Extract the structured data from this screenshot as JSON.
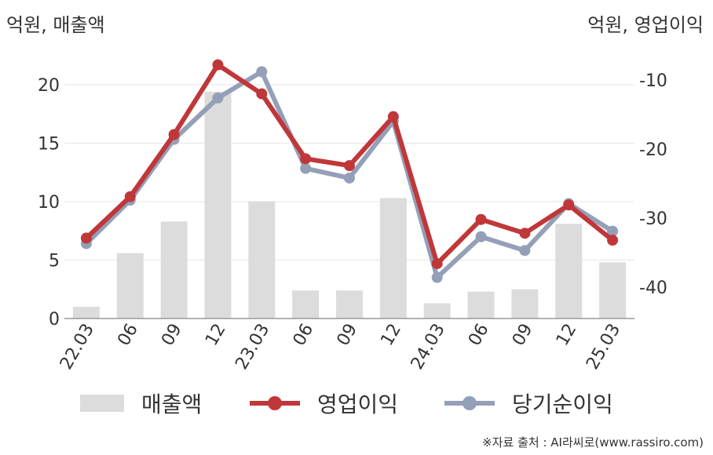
{
  "header": {
    "left_unit": "억원, 매출액",
    "right_unit": "억원, 영업이익"
  },
  "chart_data": {
    "type": "bar",
    "categories": [
      "22.03",
      "06",
      "09",
      "12",
      "23.03",
      "06",
      "09",
      "12",
      "24.03",
      "06",
      "09",
      "12",
      "25.03"
    ],
    "y_left": {
      "label": "억원, 매출액",
      "ylim": [
        0,
        20
      ],
      "ticks": [
        0,
        5,
        10,
        15,
        20
      ]
    },
    "y_right": {
      "label": "억원, 영업이익",
      "ylim": [
        -45,
        -8
      ],
      "ticks": [
        -40,
        -30,
        -20,
        -10
      ]
    },
    "grid": true,
    "legend_position": "bottom",
    "series": [
      {
        "name": "매출액",
        "type": "bar",
        "axis": "left",
        "color": "#dcdcdc",
        "values": [
          1.0,
          5.6,
          8.3,
          19.4,
          10.0,
          2.4,
          2.4,
          10.3,
          1.3,
          2.3,
          2.5,
          8.1,
          4.8
        ]
      },
      {
        "name": "영업이익",
        "type": "line",
        "axis": "right",
        "color": "#c0373a",
        "values": [
          -32.9,
          -26.9,
          -17.9,
          -7.8,
          -12.0,
          -21.4,
          -22.4,
          -15.3,
          -36.6,
          -30.2,
          -32.2,
          -28.1,
          -33.2
        ]
      },
      {
        "name": "당기순이익",
        "type": "line",
        "axis": "right",
        "color": "#949fb8",
        "values": [
          -33.7,
          -27.4,
          -18.6,
          -12.6,
          -8.8,
          -22.8,
          -24.2,
          -16.0,
          -38.6,
          -32.7,
          -34.7,
          -27.9,
          -31.9
        ]
      }
    ]
  },
  "source": "※자료 출처 : AI라씨로(www.rassiro.com)"
}
